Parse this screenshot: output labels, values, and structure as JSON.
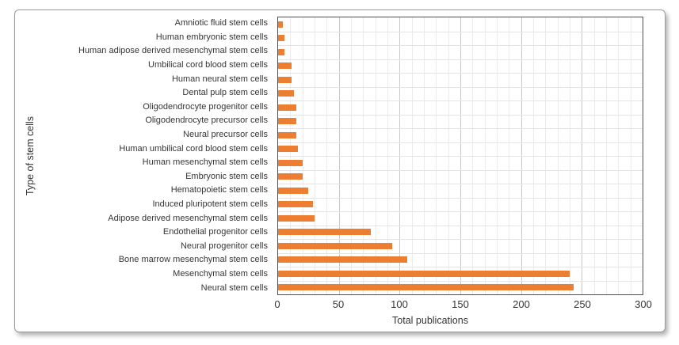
{
  "chart_data": {
    "type": "bar",
    "orientation": "horizontal",
    "title": "",
    "xlabel": "Total publications",
    "ylabel": "Type of stem cells",
    "xlim": [
      0,
      300
    ],
    "xticks": [
      0,
      50,
      100,
      150,
      200,
      250,
      300
    ],
    "minor_grid_step": 10,
    "major_grid_step": 50,
    "grid": true,
    "legend": false,
    "bar_color": "#ED7D31",
    "categories": [
      "Amniotic fluid stem cells",
      "Human embryonic stem cells",
      "Human adipose derived mesenchymal stem cells",
      "Umbilical cord blood stem cells",
      "Human neural stem cells",
      "Dental pulp stem cells",
      "Oligodendrocyte progenitor cells",
      "Oligodendrocyte precursor cells",
      "Neural precursor cells",
      "Human umbilical cord blood stem cells",
      "Human mesenchymal stem cells",
      "Embryonic stem cells",
      "Hematopoietic stem cells",
      "Induced pluripotent stem cells",
      "Adipose derived mesenchymal stem cells",
      "Endothelial progenitor cells",
      "Neural progenitor cells",
      "Bone marrow mesenchymal stem cells",
      "Mesenchymal stem cells",
      "Neural stem cells"
    ],
    "values": [
      4,
      5,
      5,
      11,
      11,
      13,
      15,
      15,
      15,
      16,
      20,
      20,
      25,
      29,
      30,
      76,
      94,
      106,
      240,
      243
    ]
  }
}
